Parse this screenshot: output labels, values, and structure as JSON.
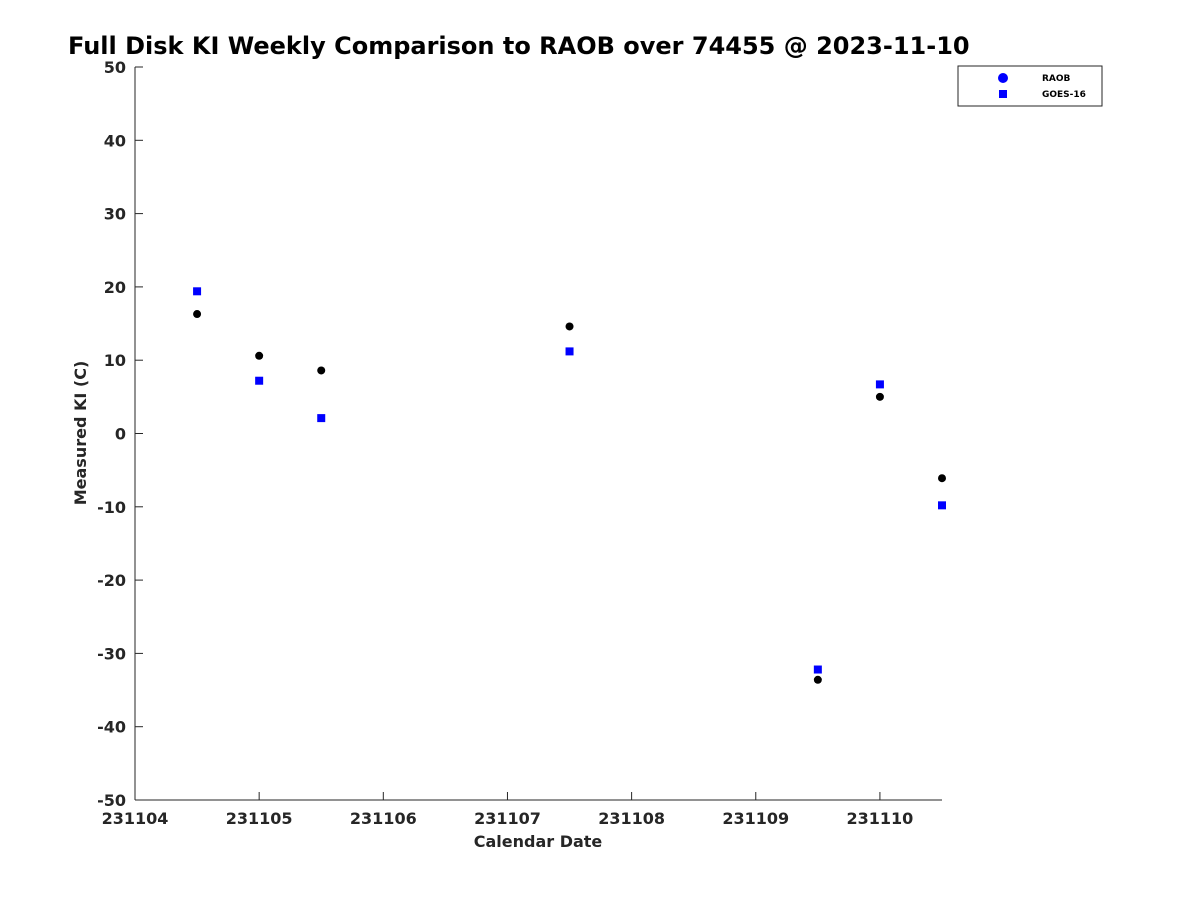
{
  "chart_data": {
    "type": "scatter",
    "title": "Full Disk KI Weekly Comparison to RAOB over 74455 @ 2023-11-10",
    "xlabel": "Calendar Date",
    "ylabel": "Measured KI (C)",
    "xlim": [
      "2023-11-04",
      "2023-11-10T12:00"
    ],
    "ylim": [
      -50,
      50
    ],
    "x_ticks": [
      {
        "value": "2023-11-04",
        "label": "231104"
      },
      {
        "value": "2023-11-05",
        "label": "231105"
      },
      {
        "value": "2023-11-06",
        "label": "231106"
      },
      {
        "value": "2023-11-07",
        "label": "231107"
      },
      {
        "value": "2023-11-08",
        "label": "231108"
      },
      {
        "value": "2023-11-09",
        "label": "231109"
      },
      {
        "value": "2023-11-10",
        "label": "231110"
      }
    ],
    "y_ticks": [
      "50",
      "40",
      "30",
      "20",
      "10",
      "0",
      "-10",
      "-20",
      "-30",
      "-40",
      "-50"
    ],
    "legend_position": "top-right",
    "grid": false,
    "series": [
      {
        "name": "RAOB",
        "marker": "circle",
        "color": "#000000",
        "legend_color": "#0000ff",
        "points": [
          {
            "x": "2023-11-04T12:00",
            "y": 16.3
          },
          {
            "x": "2023-11-05T00:00",
            "y": 10.6
          },
          {
            "x": "2023-11-05T12:00",
            "y": 8.6
          },
          {
            "x": "2023-11-07T12:00",
            "y": 14.6
          },
          {
            "x": "2023-11-09T12:00",
            "y": -33.6
          },
          {
            "x": "2023-11-10T00:00",
            "y": 5.0
          },
          {
            "x": "2023-11-10T12:00",
            "y": -6.1
          }
        ]
      },
      {
        "name": "GOES-16",
        "marker": "square",
        "color": "#0000ff",
        "legend_color": "#0000ff",
        "points": [
          {
            "x": "2023-11-04T12:00",
            "y": 19.4
          },
          {
            "x": "2023-11-05T00:00",
            "y": 7.2
          },
          {
            "x": "2023-11-05T12:00",
            "y": 2.1
          },
          {
            "x": "2023-11-07T12:00",
            "y": 11.2
          },
          {
            "x": "2023-11-09T12:00",
            "y": -32.2
          },
          {
            "x": "2023-11-10T00:00",
            "y": 6.7
          },
          {
            "x": "2023-11-10T12:00",
            "y": -9.8
          }
        ]
      }
    ]
  }
}
